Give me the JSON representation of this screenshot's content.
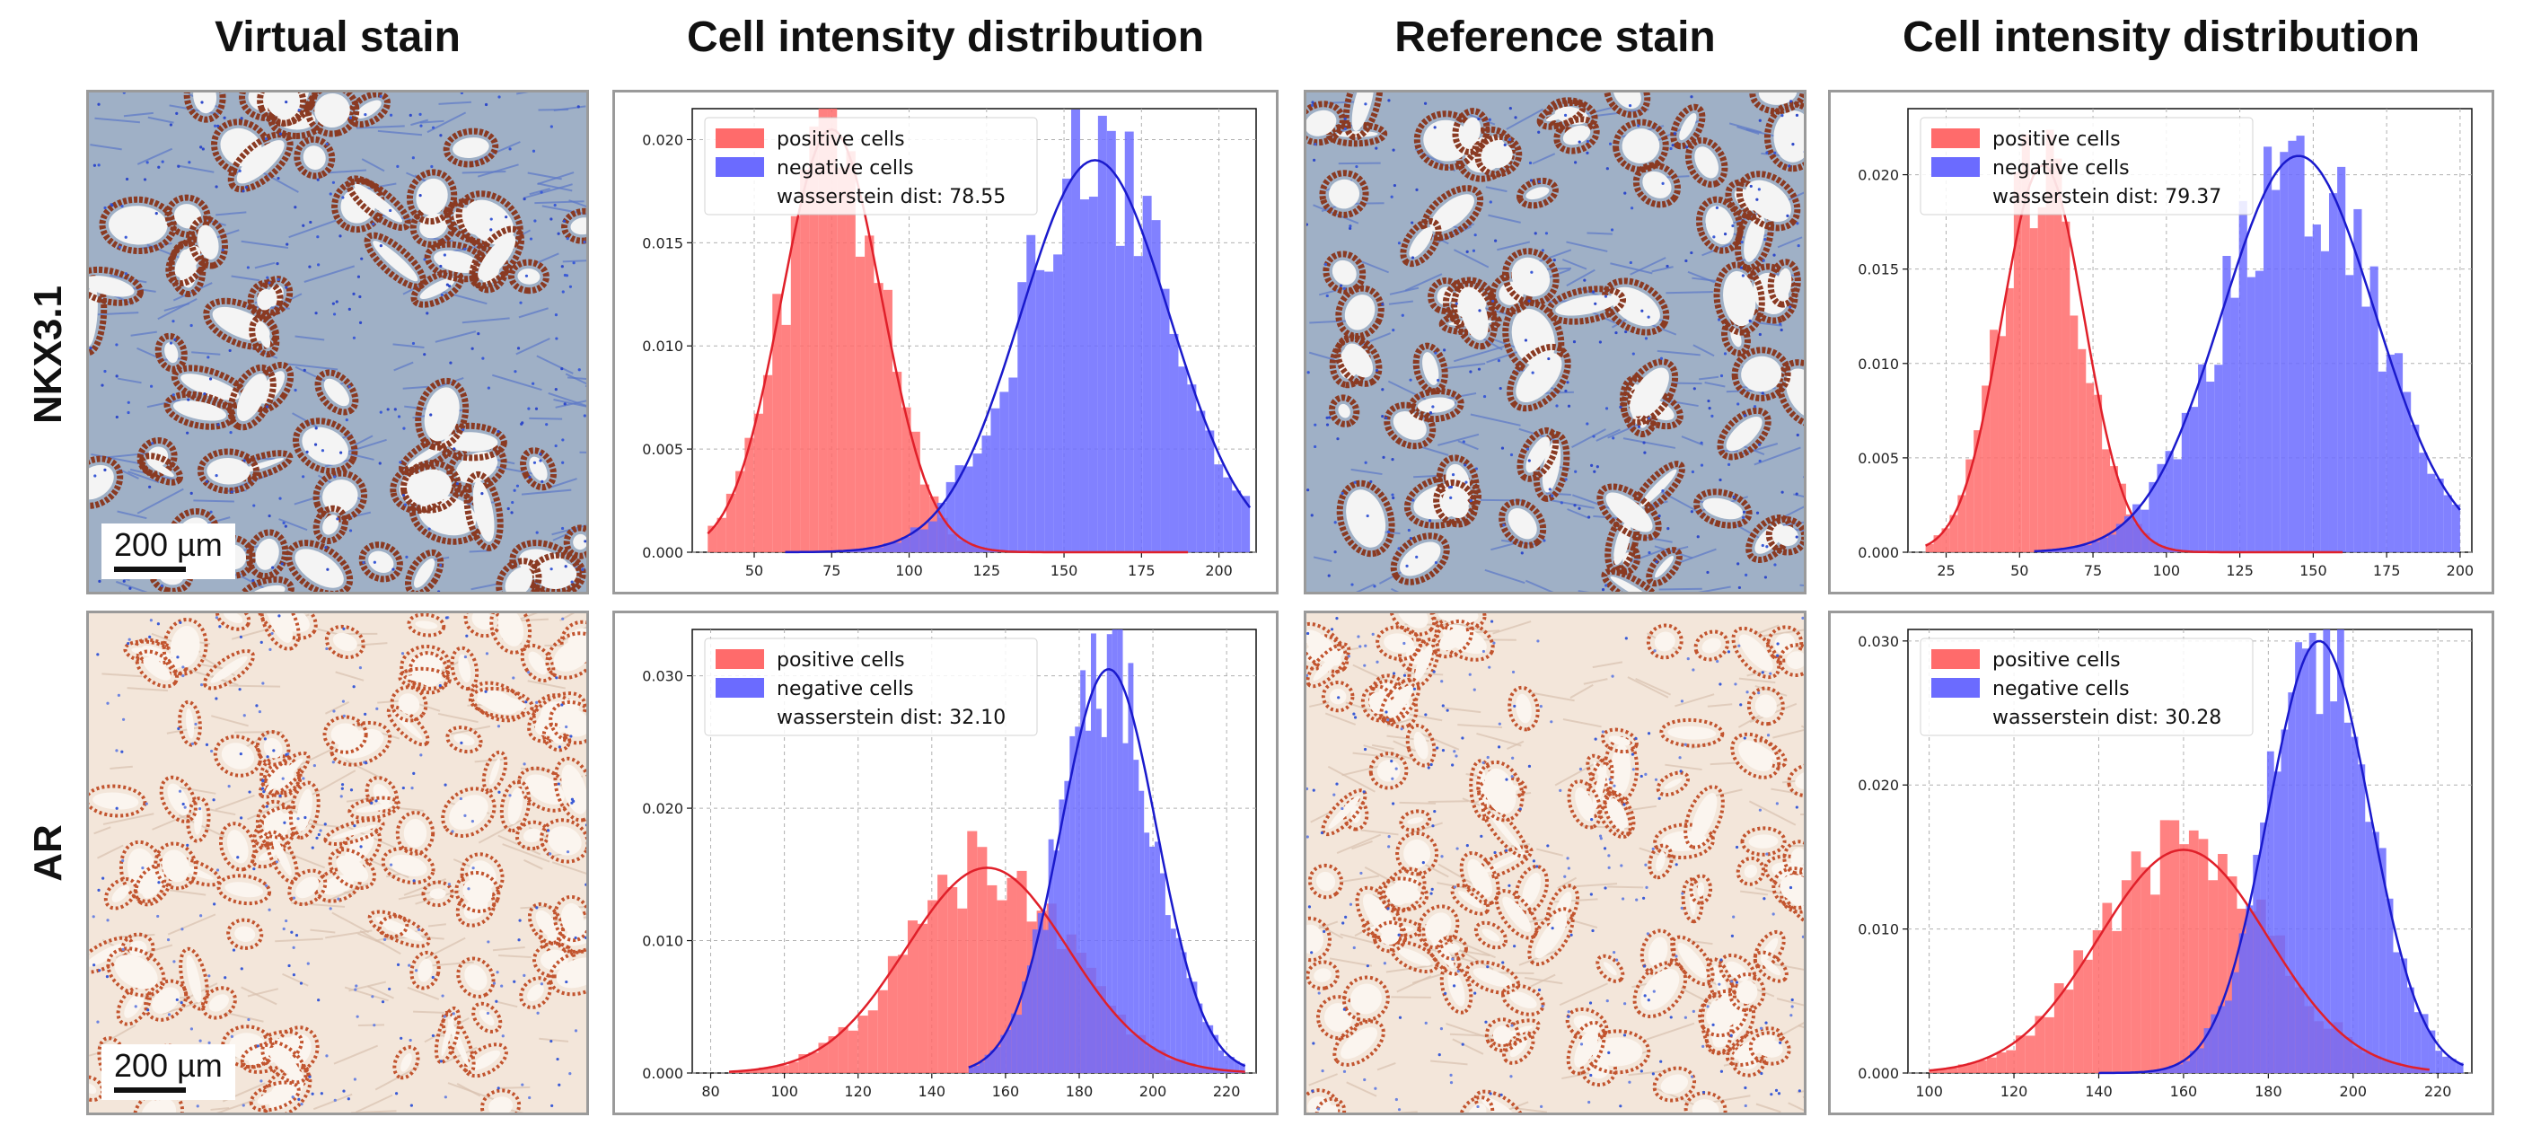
{
  "column_titles": [
    "Virtual stain",
    "Cell intensity distribution",
    "Reference stain",
    "Cell intensity distribution"
  ],
  "row_labels": [
    "NKX3.1",
    "AR"
  ],
  "scale_bar_label": "200 µm",
  "colors": {
    "positive": "#ff6b6b",
    "negative": "#6b6bff",
    "positive_line": "#e0202a",
    "negative_line": "#1a1acc",
    "overlap": "#7a3ba0"
  },
  "chart_data": [
    {
      "type": "bar",
      "title": "",
      "xlabel": "",
      "ylabel": "",
      "xlim": [
        30,
        212
      ],
      "ylim": [
        0,
        0.0215
      ],
      "xticks": [
        50,
        75,
        100,
        125,
        150,
        175,
        200
      ],
      "yticks": [
        0.0,
        0.005,
        0.01,
        0.015,
        0.02
      ],
      "legend": "top-left",
      "grid": true,
      "legend_entries": [
        "positive cells",
        "negative cells"
      ],
      "annotation": "wasserstein dist: 78.55",
      "series": [
        {
          "name": "positive cells",
          "mean": 75,
          "sd": 16,
          "peak": 0.0205,
          "range": [
            35,
            190
          ]
        },
        {
          "name": "negative cells",
          "mean": 160,
          "sd": 24,
          "peak": 0.019,
          "range": [
            60,
            210
          ]
        }
      ]
    },
    {
      "type": "bar",
      "title": "",
      "xlabel": "",
      "ylabel": "",
      "xlim": [
        12,
        204
      ],
      "ylim": [
        0,
        0.0235
      ],
      "xticks": [
        25,
        50,
        75,
        100,
        125,
        150,
        175,
        200
      ],
      "yticks": [
        0.0,
        0.005,
        0.01,
        0.015,
        0.02
      ],
      "legend": "top-left",
      "grid": true,
      "legend_entries": [
        "positive cells",
        "negative cells"
      ],
      "annotation": "wasserstein dist: 79.37",
      "series": [
        {
          "name": "positive cells",
          "mean": 58,
          "sd": 14,
          "peak": 0.0205,
          "range": [
            18,
            160
          ]
        },
        {
          "name": "negative cells",
          "mean": 145,
          "sd": 26,
          "peak": 0.021,
          "range": [
            55,
            200
          ]
        }
      ]
    },
    {
      "type": "bar",
      "title": "",
      "xlabel": "",
      "ylabel": "",
      "xlim": [
        75,
        228
      ],
      "ylim": [
        0,
        0.0335
      ],
      "xticks": [
        80,
        100,
        120,
        140,
        160,
        180,
        200,
        220
      ],
      "yticks": [
        0.0,
        0.01,
        0.02,
        0.03
      ],
      "legend": "top-left",
      "grid": true,
      "legend_entries": [
        "positive cells",
        "negative cells"
      ],
      "annotation": "wasserstein dist: 32.10",
      "series": [
        {
          "name": "positive cells",
          "mean": 155,
          "sd": 22,
          "peak": 0.0155,
          "range": [
            85,
            225
          ]
        },
        {
          "name": "negative cells",
          "mean": 188,
          "sd": 13,
          "peak": 0.0305,
          "range": [
            150,
            225
          ]
        }
      ]
    },
    {
      "type": "bar",
      "title": "",
      "xlabel": "",
      "ylabel": "",
      "xlim": [
        95,
        228
      ],
      "ylim": [
        0,
        0.0308
      ],
      "xticks": [
        100,
        120,
        140,
        160,
        180,
        200,
        220
      ],
      "yticks": [
        0.0,
        0.01,
        0.02,
        0.03
      ],
      "legend": "top-left",
      "grid": true,
      "legend_entries": [
        "positive cells",
        "negative cells"
      ],
      "annotation": "wasserstein dist: 30.28",
      "series": [
        {
          "name": "positive cells",
          "mean": 160,
          "sd": 20,
          "peak": 0.0155,
          "range": [
            100,
            218
          ]
        },
        {
          "name": "negative cells",
          "mean": 192,
          "sd": 12,
          "peak": 0.03,
          "range": [
            140,
            226
          ]
        }
      ]
    }
  ]
}
